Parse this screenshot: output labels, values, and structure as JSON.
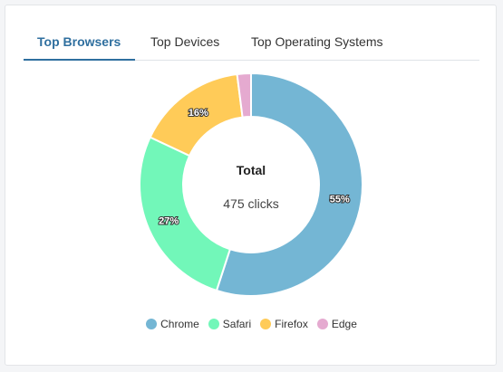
{
  "tabs": [
    {
      "label": "Top Browsers",
      "active": true
    },
    {
      "label": "Top Devices",
      "active": false
    },
    {
      "label": "Top Operating Systems",
      "active": false
    }
  ],
  "chart_data": {
    "type": "pie",
    "donut": true,
    "center_title": "Total",
    "center_value": "475 clicks",
    "legend_position": "bottom",
    "categories": [
      "Chrome",
      "Safari",
      "Firefox",
      "Edge"
    ],
    "values": [
      55,
      27,
      16,
      2
    ],
    "value_labels": [
      "55%",
      "27%",
      "16%",
      ""
    ],
    "colors": [
      "#74b6d4",
      "#72f7b9",
      "#ffcb58",
      "#e5aad0"
    ]
  }
}
